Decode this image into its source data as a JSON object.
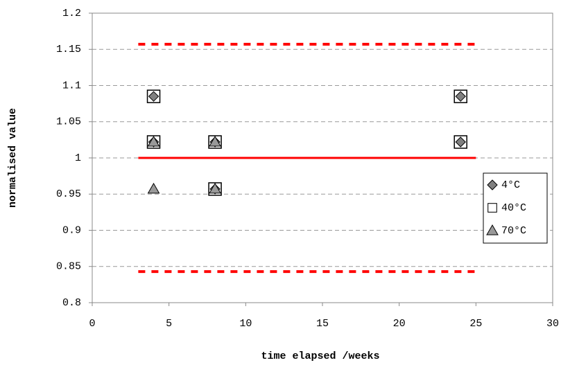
{
  "chart_data": {
    "type": "scatter",
    "xlabel": "time elapsed /weeks",
    "ylabel": "normalised value",
    "xlim": [
      0,
      30
    ],
    "xticks": [
      0,
      5,
      10,
      15,
      20,
      25,
      30
    ],
    "ylim": [
      0.8,
      1.2
    ],
    "yticks": [
      0.8,
      0.85,
      0.9,
      0.95,
      1,
      1.05,
      1.1,
      1.15,
      1.2
    ],
    "grid": true,
    "legend": "right",
    "series": [
      {
        "name": "4°C",
        "marker": "diamond",
        "color": "#808080",
        "x": [
          4,
          4,
          8,
          8,
          24,
          24
        ],
        "values": [
          1.085,
          1.022,
          1.022,
          0.957,
          1.085,
          1.022
        ]
      },
      {
        "name": "40°C",
        "marker": "square",
        "color": "#ffffff",
        "x": [
          4,
          4,
          8,
          8,
          24,
          24
        ],
        "values": [
          1.085,
          1.022,
          1.022,
          0.957,
          1.085,
          1.022
        ]
      },
      {
        "name": "70°C",
        "marker": "triangle",
        "color": "#999999",
        "x": [
          4,
          4,
          8,
          8
        ],
        "values": [
          1.022,
          0.957,
          1.022,
          0.957
        ]
      }
    ],
    "lines": [
      {
        "x": [
          3,
          25
        ],
        "values": [
          1.157,
          1.157
        ],
        "color": "#ff0000",
        "dashed": true
      },
      {
        "x": [
          3,
          25
        ],
        "values": [
          1,
          1
        ],
        "color": "#ff0000",
        "dashed": false
      },
      {
        "x": [
          3,
          25
        ],
        "values": [
          0.843,
          0.843
        ],
        "color": "#ff0000",
        "dashed": true
      }
    ]
  }
}
